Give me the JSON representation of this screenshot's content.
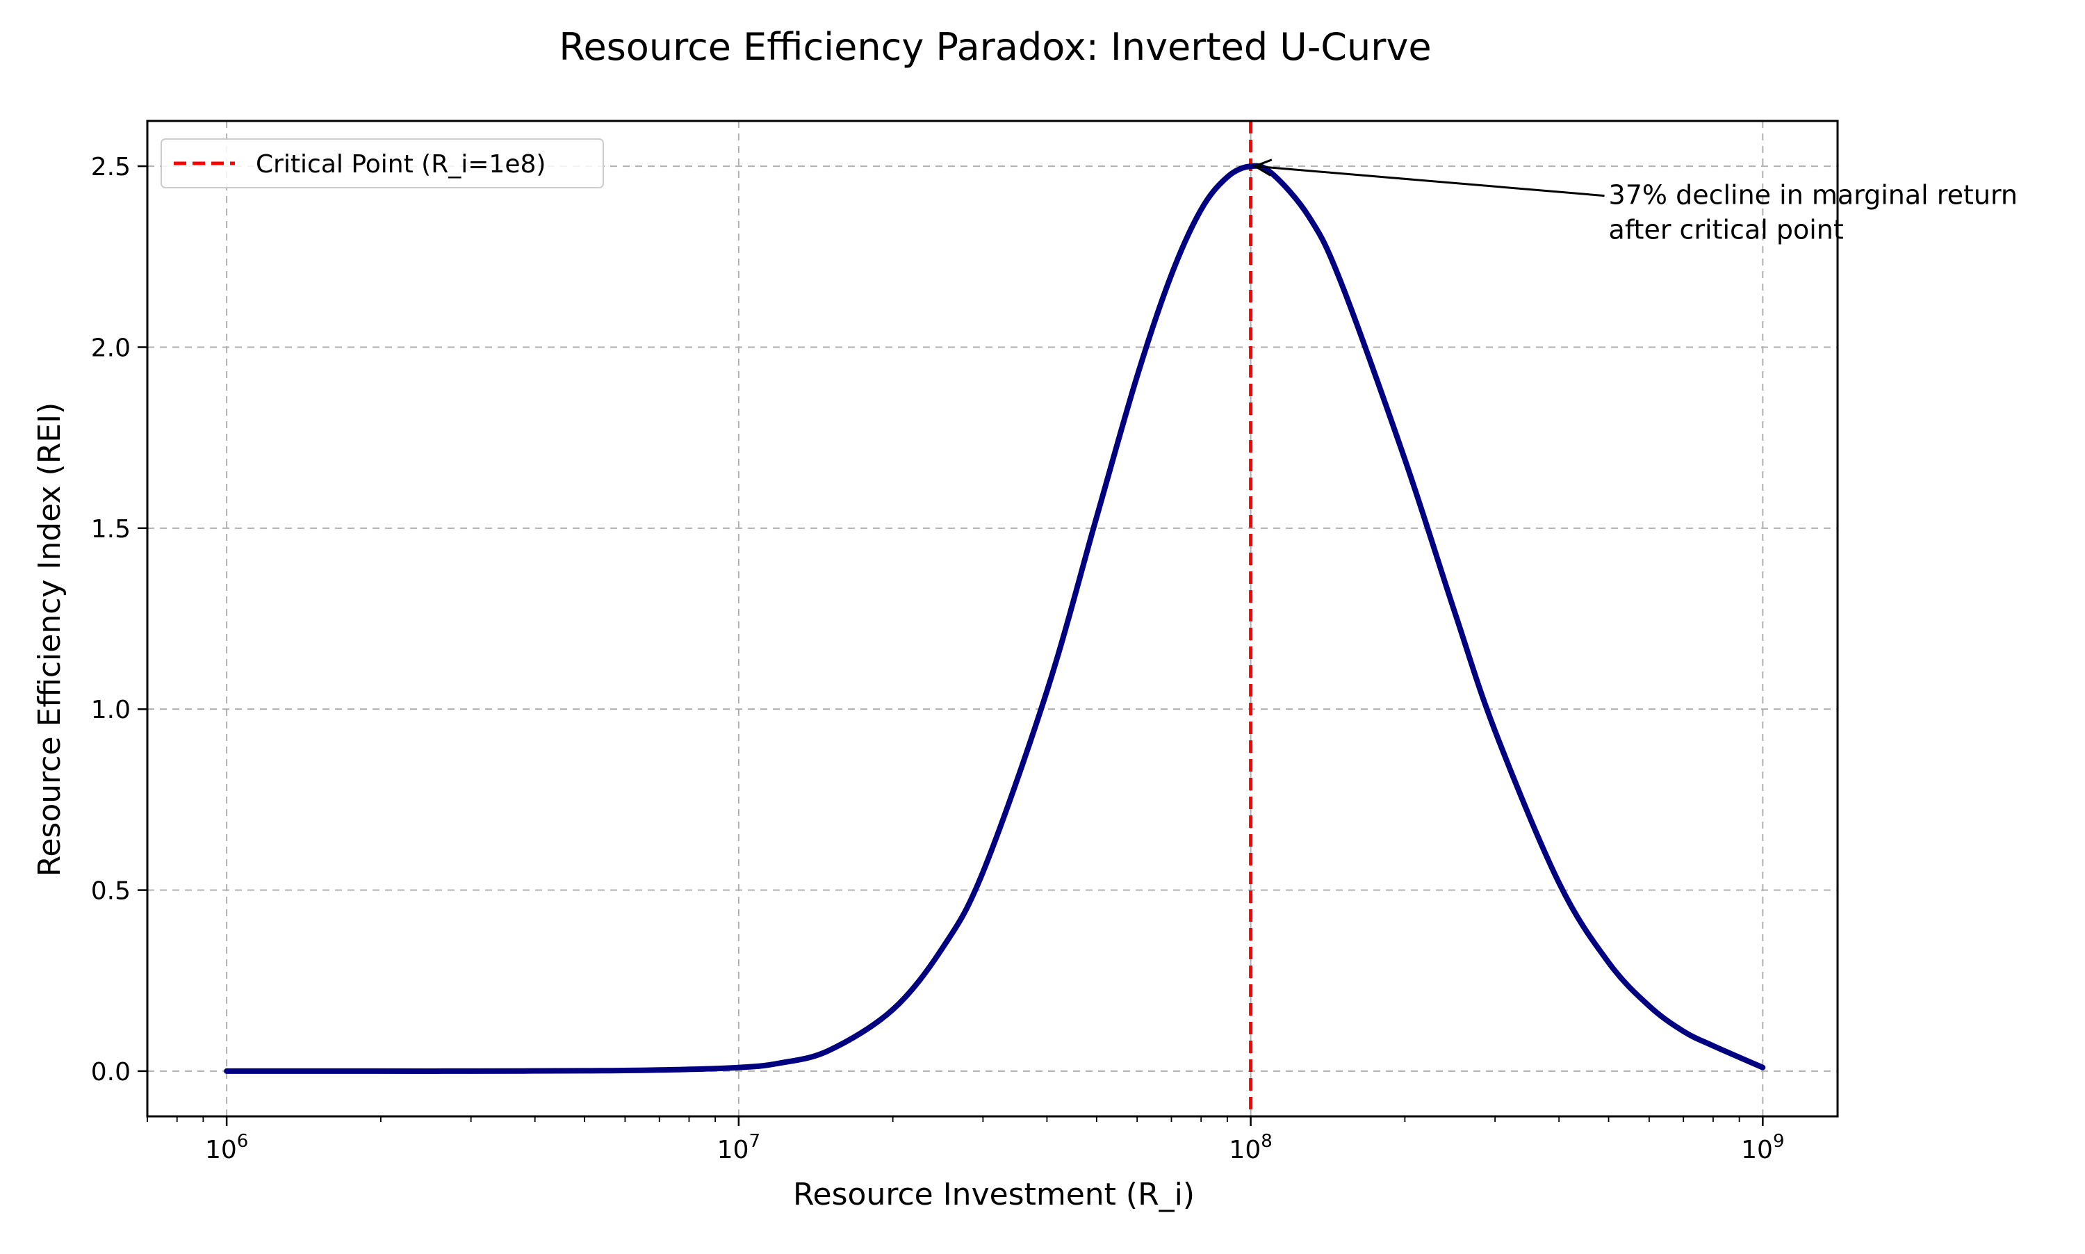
{
  "chart_data": {
    "type": "line",
    "title": "Resource Efficiency Paradox: Inverted U-Curve",
    "xlabel": "Resource Investment (R_i)",
    "ylabel": "Resource Efficiency Index (REI)",
    "x_scale": "log",
    "xlim": [
      700000,
      1400000000
    ],
    "ylim": [
      -0.125,
      2.625
    ],
    "grid": true,
    "x_ticks": [
      {
        "value": 1000000,
        "base": "10",
        "exp": "6"
      },
      {
        "value": 10000000,
        "base": "10",
        "exp": "7"
      },
      {
        "value": 100000000,
        "base": "10",
        "exp": "8"
      },
      {
        "value": 1000000000,
        "base": "10",
        "exp": "9"
      }
    ],
    "y_ticks": [
      {
        "value": 0.0,
        "label": "0.0"
      },
      {
        "value": 0.5,
        "label": "0.5"
      },
      {
        "value": 1.0,
        "label": "1.0"
      },
      {
        "value": 1.5,
        "label": "1.5"
      },
      {
        "value": 2.0,
        "label": "2.0"
      },
      {
        "value": 2.5,
        "label": "2.5"
      }
    ],
    "series": [
      {
        "color": "#000080",
        "x": [
          1000000,
          2000000,
          3000000,
          5000000,
          7000000,
          10000000,
          12000000,
          15000000,
          20000000,
          25000000,
          30000000,
          40000000,
          50000000,
          60000000,
          70000000,
          80000000,
          90000000,
          100000000,
          110000000,
          130000000,
          150000000,
          200000000,
          250000000,
          300000000,
          400000000,
          500000000,
          600000000,
          700000000,
          800000000,
          1000000000
        ],
        "y": [
          0.0,
          0.0,
          0.0,
          0.001,
          0.003,
          0.01,
          0.022,
          0.057,
          0.17,
          0.34,
          0.55,
          1.05,
          1.53,
          1.92,
          2.2,
          2.38,
          2.47,
          2.5,
          2.48,
          2.36,
          2.18,
          1.69,
          1.27,
          0.94,
          0.52,
          0.3,
          0.18,
          0.11,
          0.07,
          0.01
        ]
      }
    ],
    "vline": {
      "x": 100000000,
      "color": "#ff0000",
      "style": "dashed",
      "label": "Critical Point (R_i=1e8)"
    },
    "legend": {
      "position": "top-left"
    },
    "annotation": {
      "lines": [
        "37% decline in marginal return",
        "after critical point"
      ],
      "point": {
        "x": 100000000,
        "y": 2.5
      },
      "text_anchor": {
        "x": 500000000,
        "y": 2.33
      }
    }
  }
}
